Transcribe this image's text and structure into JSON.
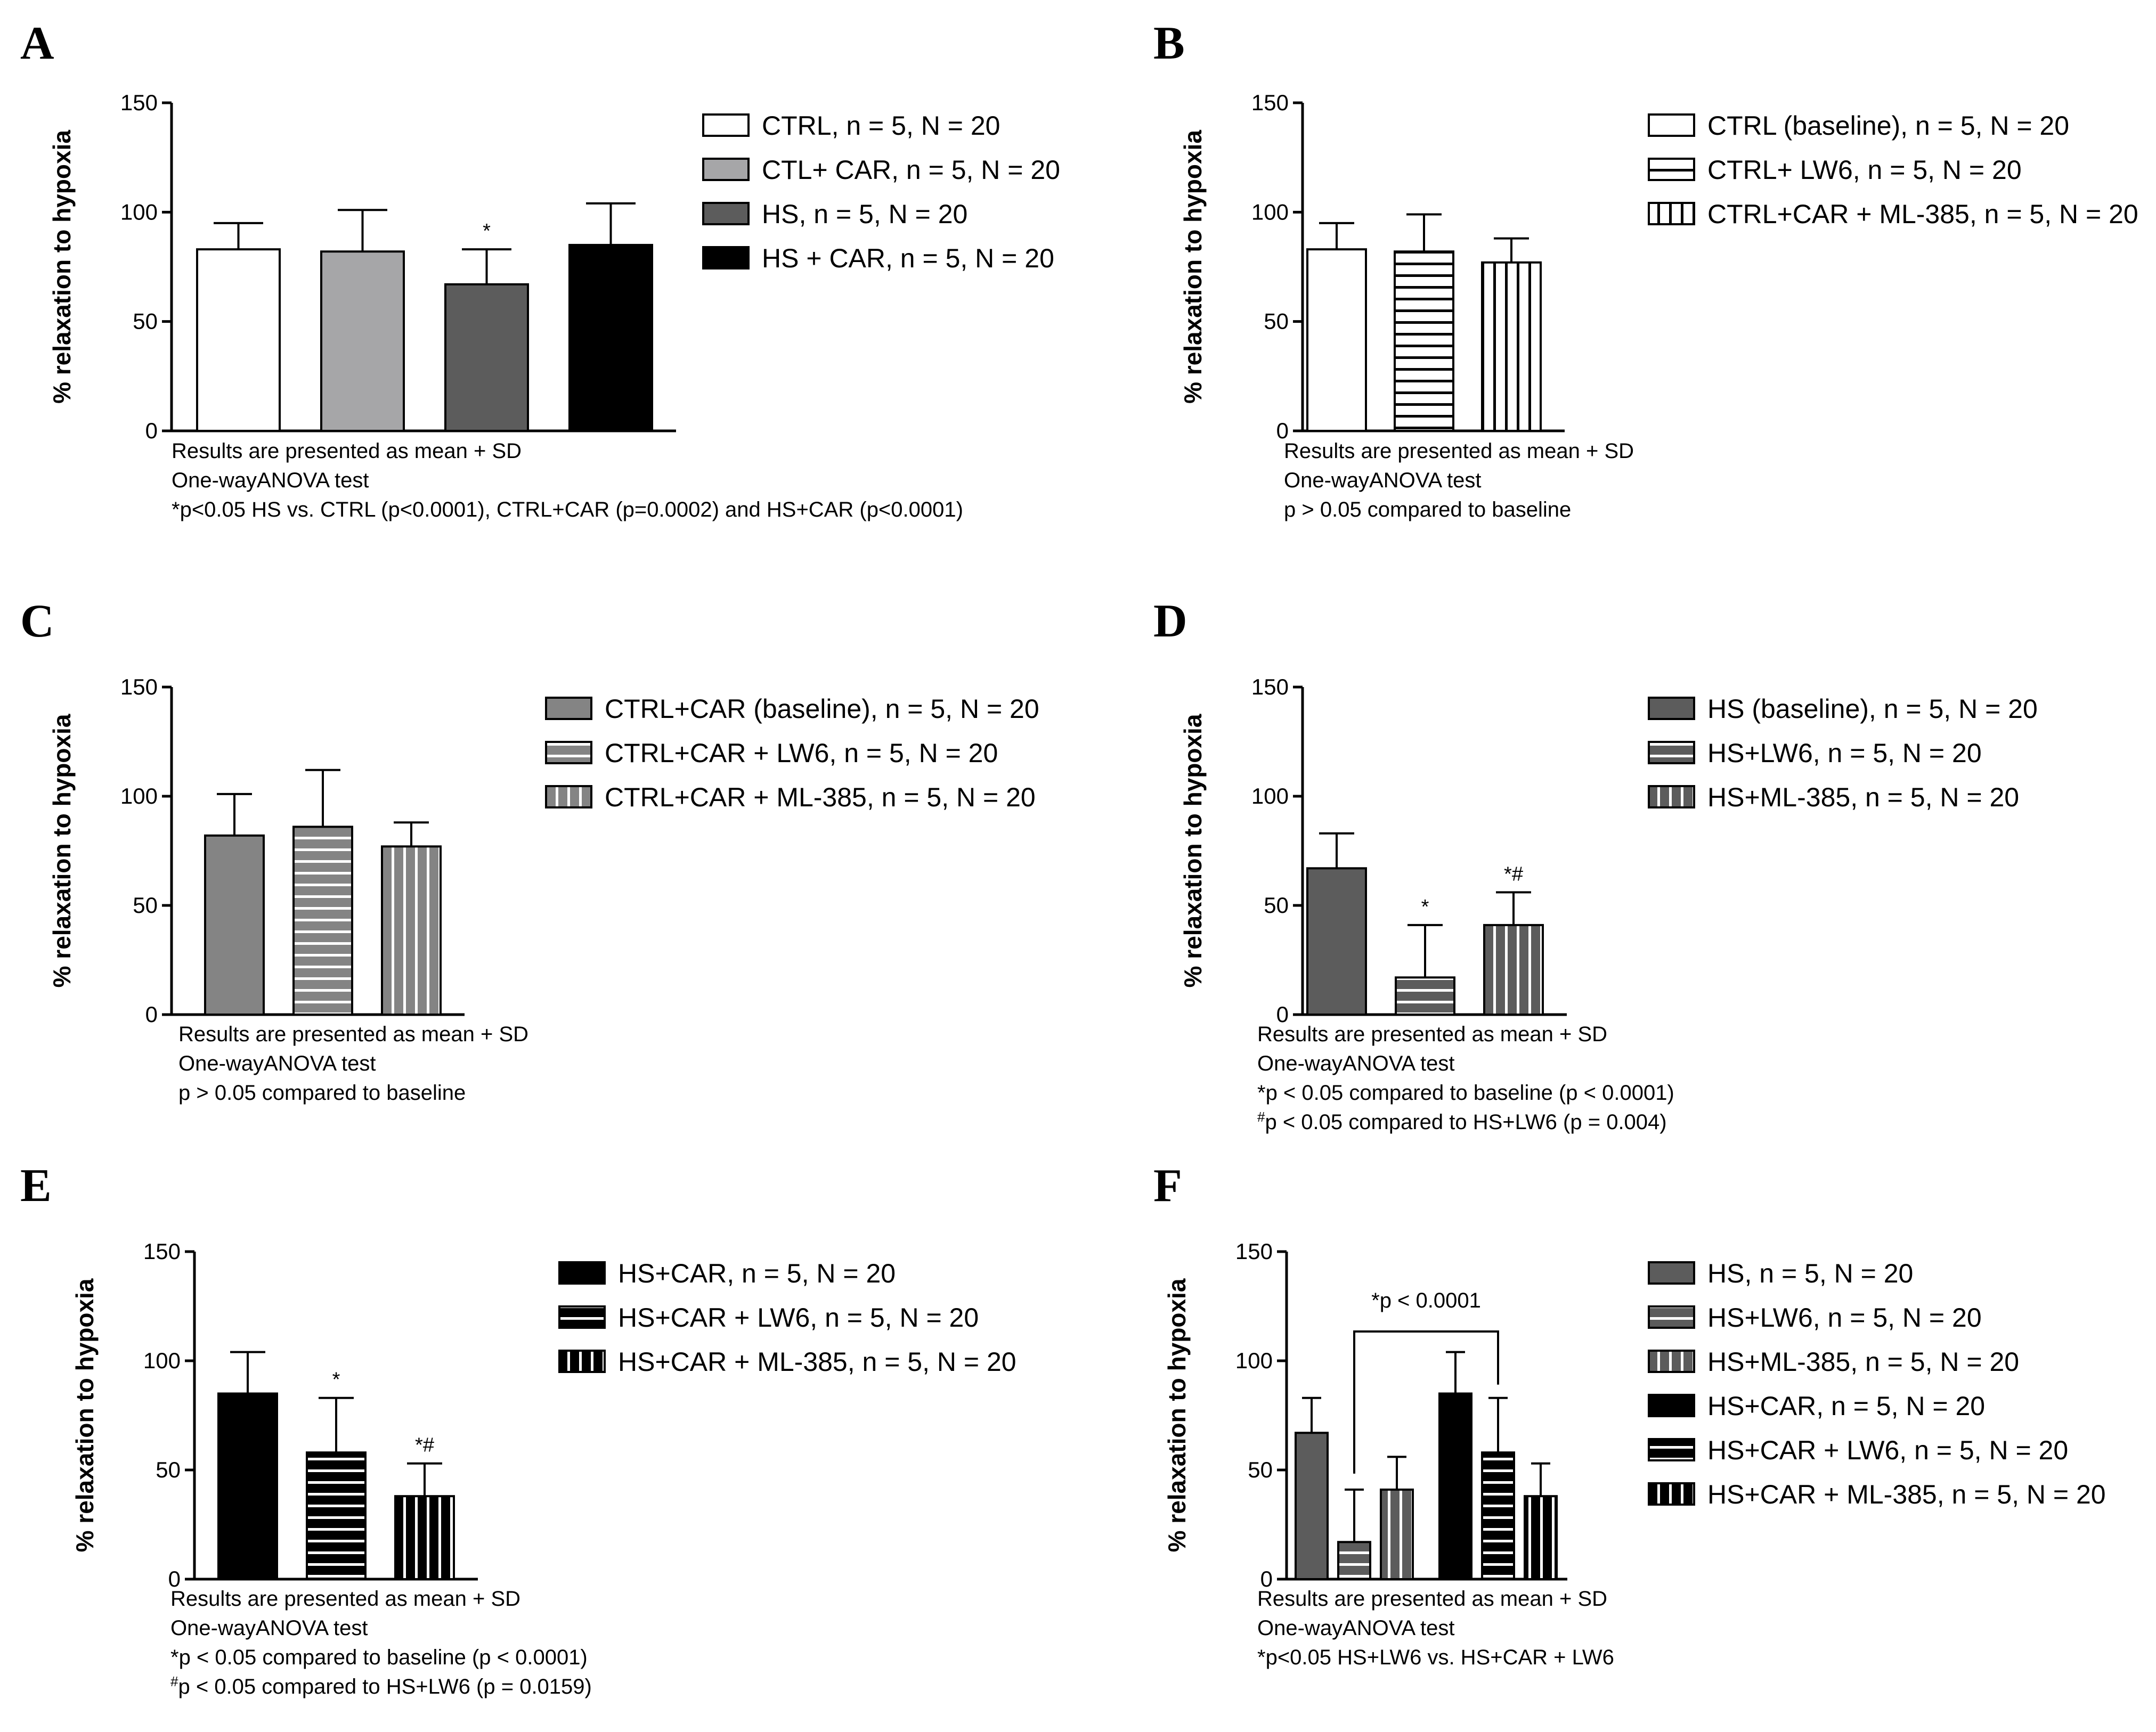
{
  "colors": {
    "white": "#ffffff",
    "lightgray": "#a6a6a8",
    "midgray": "#848484",
    "darkgray": "#5c5c5c",
    "black": "#000000"
  },
  "chart_data": [
    {
      "panel": "A",
      "type": "bar",
      "ylabel": "% relaxation to hypoxia",
      "ylim": [
        0,
        150
      ],
      "yticks": [
        0,
        50,
        100,
        150
      ],
      "categories": [
        "CTRL, n = 5, N = 20",
        "CTL+ CAR, n = 5, N = 20",
        "HS, n = 5, N = 20",
        "HS + CAR, n = 5, N = 20"
      ],
      "values": [
        83,
        82,
        67,
        85
      ],
      "errors": [
        12,
        19,
        16,
        19
      ],
      "fills": [
        "white",
        "lightgray",
        "darkgray",
        "black"
      ],
      "patterns": [
        "none",
        "none",
        "none",
        "none"
      ],
      "stars": [
        "",
        "",
        "*",
        ""
      ],
      "legend": "right",
      "notes": [
        "Results are presented as mean + SD",
        "One-wayANOVA test",
        "*p<0.05 HS vs. CTRL (p<0.0001), CTRL+CAR (p=0.0002) and HS+CAR (p<0.0001)"
      ]
    },
    {
      "panel": "B",
      "type": "bar",
      "ylabel": "% relaxation to hypoxia",
      "ylim": [
        0,
        150
      ],
      "yticks": [
        0,
        50,
        100,
        150
      ],
      "categories": [
        "CTRL (baseline), n = 5, N = 20",
        "CTRL+ LW6, n = 5, N = 20",
        "CTRL+CAR + ML-385, n = 5, N = 20"
      ],
      "values": [
        83,
        82,
        77
      ],
      "errors": [
        12,
        17,
        11
      ],
      "fills": [
        "white",
        "white",
        "white"
      ],
      "patterns": [
        "none",
        "hlines",
        "vlines"
      ],
      "stars": [
        "",
        "",
        ""
      ],
      "legend": "right",
      "notes": [
        "Results are presented as mean + SD",
        "One-wayANOVA test",
        "p > 0.05 compared to baseline"
      ]
    },
    {
      "panel": "C",
      "type": "bar",
      "ylabel": "% relaxation to hypoxia",
      "ylim": [
        0,
        150
      ],
      "yticks": [
        0,
        50,
        100,
        150
      ],
      "categories": [
        "CTRL+CAR (baseline), n = 5, N = 20",
        "CTRL+CAR + LW6, n = 5, N = 20",
        "CTRL+CAR + ML-385, n = 5, N = 20"
      ],
      "values": [
        82,
        86,
        77
      ],
      "errors": [
        19,
        26,
        11
      ],
      "fills": [
        "midgray",
        "midgray",
        "midgray"
      ],
      "patterns": [
        "none",
        "hlines",
        "vlines"
      ],
      "stars": [
        "",
        "",
        ""
      ],
      "legend": "right",
      "notes": [
        "Results are presented as mean + SD",
        "One-wayANOVA test",
        "p > 0.05 compared to baseline"
      ]
    },
    {
      "panel": "D",
      "type": "bar",
      "ylabel": "% relaxation to hypoxia",
      "ylim": [
        0,
        150
      ],
      "yticks": [
        0,
        50,
        100,
        150
      ],
      "categories": [
        "HS (baseline), n = 5, N = 20",
        "HS+LW6, n = 5, N = 20",
        "HS+ML-385, n = 5, N = 20"
      ],
      "values": [
        67,
        17,
        41
      ],
      "errors": [
        16,
        24,
        15
      ],
      "fills": [
        "darkgray",
        "darkgray",
        "darkgray"
      ],
      "patterns": [
        "none",
        "hlines",
        "vlines"
      ],
      "stars": [
        "",
        "*",
        "*#"
      ],
      "legend": "right",
      "notes": [
        "Results are presented as mean + SD",
        "One-wayANOVA test",
        "*p < 0.05 compared to baseline (p < 0.0001)",
        "#p < 0.05 compared to HS+LW6 (p = 0.004)"
      ]
    },
    {
      "panel": "E",
      "type": "bar",
      "ylabel": "% relaxation to hypoxia",
      "ylim": [
        0,
        150
      ],
      "yticks": [
        0,
        50,
        100,
        150
      ],
      "categories": [
        "HS+CAR, n = 5, N = 20",
        "HS+CAR + LW6, n = 5, N = 20",
        "HS+CAR + ML-385, n = 5, N = 20"
      ],
      "values": [
        85,
        58,
        38
      ],
      "errors": [
        19,
        25,
        15
      ],
      "fills": [
        "black",
        "black",
        "black"
      ],
      "patterns": [
        "none",
        "hlines",
        "vlines"
      ],
      "stars": [
        "",
        "*",
        "*#"
      ],
      "legend": "right",
      "notes": [
        "Results are presented as mean + SD",
        "One-wayANOVA test",
        "*p < 0.05 compared to baseline (p < 0.0001)",
        "#p < 0.05 compared to HS+LW6 (p = 0.0159)"
      ]
    },
    {
      "panel": "F",
      "type": "bar",
      "ylabel": "% relaxation to hypoxia",
      "ylim": [
        0,
        150
      ],
      "yticks": [
        0,
        50,
        100,
        150
      ],
      "categories": [
        "HS, n = 5, N = 20",
        "HS+LW6, n = 5, N = 20",
        "HS+ML-385, n = 5, N = 20",
        "HS+CAR, n = 5, N = 20",
        "HS+CAR + LW6, n = 5, N = 20",
        "HS+CAR + ML-385, n = 5, N = 20"
      ],
      "values": [
        67,
        17,
        41,
        85,
        58,
        38
      ],
      "errors": [
        16,
        24,
        15,
        19,
        25,
        15
      ],
      "fills": [
        "darkgray",
        "darkgray",
        "darkgray",
        "black",
        "black",
        "black"
      ],
      "patterns": [
        "none",
        "hlines",
        "vlines",
        "none",
        "hlines",
        "vlines"
      ],
      "stars": [
        "",
        "",
        "",
        "",
        "",
        ""
      ],
      "bracket": {
        "from": 1,
        "to": 4,
        "label": "*p < 0.0001"
      },
      "legend": "right",
      "notes": [
        "Results are presented as mean + SD",
        "One-wayANOVA test",
        "*p<0.05 HS+LW6 vs. HS+CAR + LW6"
      ]
    }
  ]
}
